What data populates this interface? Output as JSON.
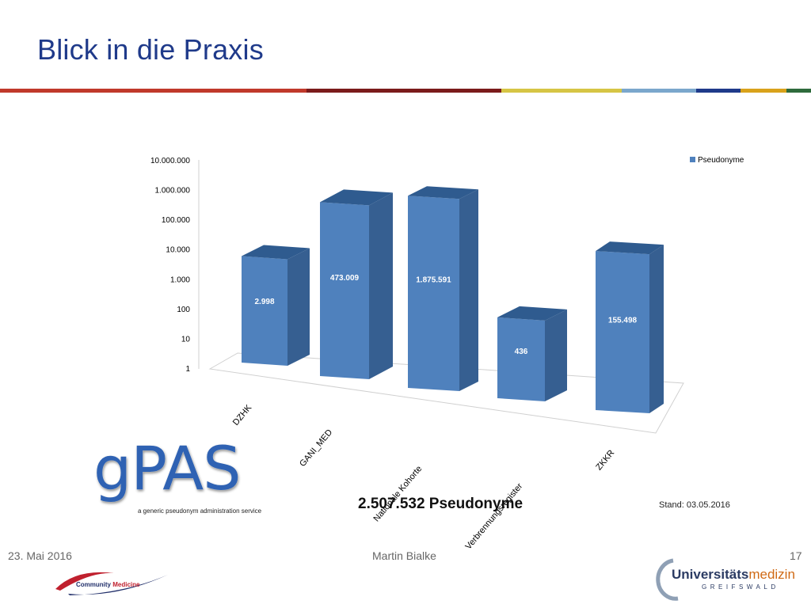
{
  "slide": {
    "title": "Blick in die Praxis",
    "stripe_colors": [
      "#c0392b",
      "#7b1b1b",
      "#d6c545",
      "#7ba7cc",
      "#1f3a8a",
      "#d9a21b",
      "#2e6b3c"
    ],
    "total_label": "2.507.532 Pseudonyme",
    "stand_label": "Stand: 03.05.2016"
  },
  "footer": {
    "date": "23. Mai 2016",
    "author": "Martin Bialke",
    "page_number": "17"
  },
  "logos": {
    "gpas": {
      "word": "gPAS",
      "tagline": "a generic pseudonym administration service"
    },
    "community": {
      "part1": "Community ",
      "part2": "Medicine"
    },
    "university": {
      "part1": "Universitäts",
      "part2": "medizin",
      "sub": "GREIFSWALD"
    }
  },
  "chart_data": {
    "type": "bar",
    "style": "3d-column",
    "y_scale": "log",
    "categories": [
      "DZHK",
      "GANI_MED",
      "Nationale Kohorte",
      "Verbrennungsregister",
      "ZKKR"
    ],
    "series": [
      {
        "name": "Pseudonyme",
        "values": [
          2998,
          473009,
          1875591,
          436,
          155498
        ],
        "labels": [
          "2.998",
          "473.009",
          "1.875.591",
          "436",
          "155.498"
        ]
      }
    ],
    "y_ticks": [
      "1",
      "10",
      "100",
      "1.000",
      "10.000",
      "100.000",
      "1.000.000",
      "10.000.000"
    ],
    "ylim": [
      1,
      10000000
    ],
    "legend_position": "top-right",
    "colors": {
      "front": "#4f81bd",
      "side": "#365f91",
      "top": "#2f5b8f",
      "label": "#ffffff"
    }
  }
}
